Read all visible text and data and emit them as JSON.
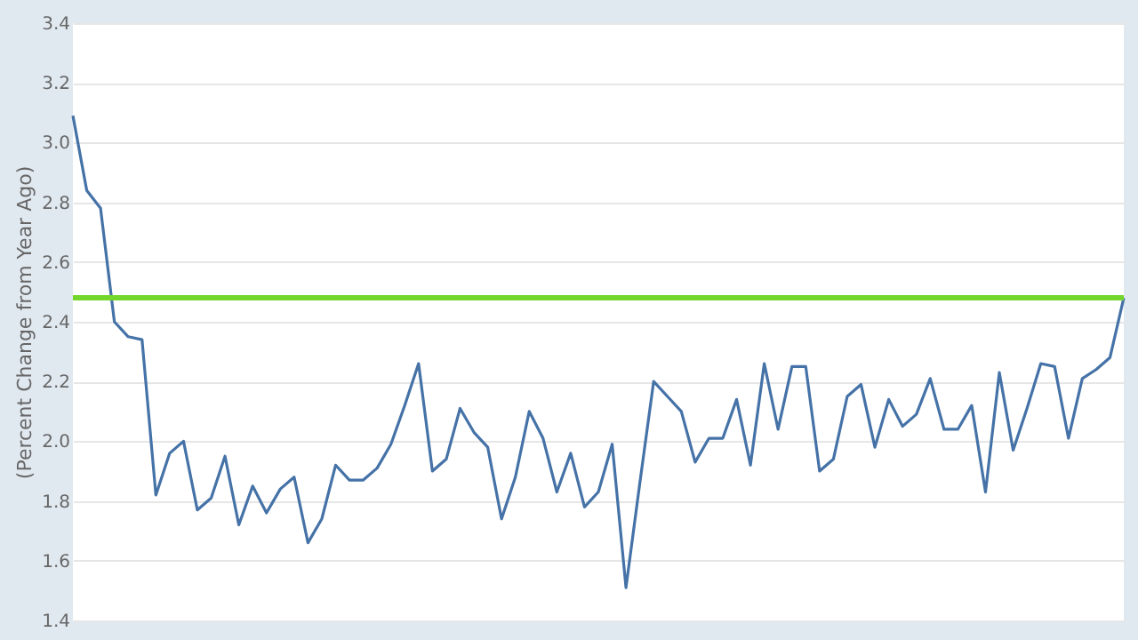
{
  "chart_data": {
    "type": "line",
    "ylabel": "(Percent Change from Year Ago)",
    "categories": [
      null,
      null,
      null,
      null,
      null,
      null,
      null,
      null,
      null,
      null,
      null,
      null,
      null,
      null,
      null,
      null,
      null,
      null,
      null,
      null,
      null,
      null,
      null,
      null,
      null,
      null,
      null,
      null,
      null,
      null,
      null,
      null,
      null,
      null,
      null,
      null,
      null,
      null,
      null,
      null,
      null,
      null,
      null,
      null,
      null,
      null,
      null,
      null,
      null,
      null,
      null,
      null,
      null,
      null,
      null,
      null,
      null,
      null,
      null,
      null,
      null,
      null,
      null,
      null,
      null,
      null,
      null,
      null,
      null,
      null,
      null,
      null,
      null,
      null,
      null,
      null,
      null
    ],
    "series": [
      {
        "color": "#4572a7",
        "values": [
          3.09,
          2.84,
          2.78,
          2.4,
          2.35,
          2.34,
          1.82,
          1.96,
          2.0,
          1.77,
          1.81,
          1.95,
          1.72,
          1.85,
          1.76,
          1.84,
          1.88,
          1.66,
          1.74,
          1.92,
          1.87,
          1.87,
          1.91,
          1.99,
          2.12,
          2.26,
          1.9,
          1.94,
          2.11,
          2.03,
          1.98,
          1.74,
          1.88,
          2.1,
          2.01,
          1.83,
          1.96,
          1.78,
          1.83,
          1.99,
          1.51,
          1.86,
          2.2,
          2.15,
          2.1,
          1.93,
          2.01,
          2.01,
          2.14,
          1.92,
          2.26,
          2.04,
          2.25,
          2.25,
          1.9,
          1.94,
          2.15,
          2.19,
          1.98,
          2.14,
          2.05,
          2.09,
          2.21,
          2.04,
          2.04,
          2.12,
          1.83,
          2.23,
          1.97,
          2.11,
          2.26,
          2.25,
          2.01,
          2.21,
          2.24,
          2.28,
          2.48
        ]
      }
    ],
    "ylim": [
      1.4,
      3.4
    ],
    "yticks": [
      1.4,
      1.6,
      1.8,
      {
        "value": 2,
        "label": "2.0"
      },
      2.2,
      2.4,
      2.6,
      2.8,
      {
        "value": 3,
        "label": "3.0"
      },
      3.2,
      3.4
    ],
    "ref_lines": [
      {
        "axis": "y",
        "value": 2.48,
        "color": "#74d62b"
      }
    ],
    "grid": "y",
    "tick_labels": "y"
  }
}
